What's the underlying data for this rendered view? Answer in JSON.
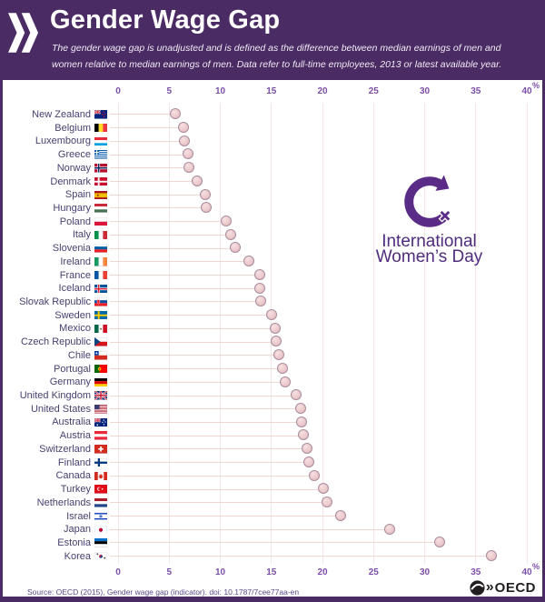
{
  "header": {
    "title": "Gender Wage Gap",
    "subtitle_line1": "The gender wage gap is unadjusted and is defined as the difference between median earnings of men and",
    "subtitle_line2": "women relative to median earnings of men. Data refer to full-time employees, 2013 or latest available year."
  },
  "watermark": {
    "line1": "International",
    "line2": "Women’s Day"
  },
  "footer": {
    "source": "Source: OECD (2015), Gender wage gap (indicator). doi: 10.1787/7cee77aa-en",
    "oecd_logo_text": "OECD"
  },
  "colors": {
    "header_bg": "#4a2b63",
    "accent_purple": "#5b2c87",
    "tick_label": "#7d4ea8",
    "country_label": "#474170",
    "dot_fill": "#e9c2c6",
    "dot_border": "#a98c9e",
    "stem": "#f1d6d4",
    "gridline": "#f3e6e6"
  },
  "chart_data": {
    "type": "scatter",
    "title": "Gender Wage Gap",
    "xlabel": "%",
    "unit": "%",
    "xlim": [
      0,
      40
    ],
    "xticks": [
      0,
      5,
      10,
      15,
      20,
      25,
      30,
      35,
      40
    ],
    "grid": true,
    "legend": "none",
    "countries": [
      {
        "name": "New Zealand",
        "flag": "nz",
        "value": 5.6
      },
      {
        "name": "Belgium",
        "flag": "be",
        "value": 6.4
      },
      {
        "name": "Luxembourg",
        "flag": "lu",
        "value": 6.5
      },
      {
        "name": "Greece",
        "flag": "gr",
        "value": 6.9
      },
      {
        "name": "Norway",
        "flag": "no",
        "value": 7.0
      },
      {
        "name": "Denmark",
        "flag": "dk",
        "value": 7.8
      },
      {
        "name": "Spain",
        "flag": "es",
        "value": 8.6
      },
      {
        "name": "Hungary",
        "flag": "hu",
        "value": 8.7
      },
      {
        "name": "Poland",
        "flag": "pl",
        "value": 10.6
      },
      {
        "name": "Italy",
        "flag": "it",
        "value": 11.1
      },
      {
        "name": "Slovenia",
        "flag": "si",
        "value": 11.5
      },
      {
        "name": "Ireland",
        "flag": "ie",
        "value": 12.8
      },
      {
        "name": "France",
        "flag": "fr",
        "value": 13.9
      },
      {
        "name": "Iceland",
        "flag": "is",
        "value": 13.9
      },
      {
        "name": "Slovak Republic",
        "flag": "sk",
        "value": 14.0
      },
      {
        "name": "Sweden",
        "flag": "se",
        "value": 15.1
      },
      {
        "name": "Mexico",
        "flag": "mx",
        "value": 15.4
      },
      {
        "name": "Czech Republic",
        "flag": "cz",
        "value": 15.5
      },
      {
        "name": "Chile",
        "flag": "cl",
        "value": 15.8
      },
      {
        "name": "Portugal",
        "flag": "pt",
        "value": 16.1
      },
      {
        "name": "Germany",
        "flag": "de",
        "value": 16.4
      },
      {
        "name": "United Kingdom",
        "flag": "gb",
        "value": 17.5
      },
      {
        "name": "United States",
        "flag": "us",
        "value": 17.9
      },
      {
        "name": "Australia",
        "flag": "au",
        "value": 18.0
      },
      {
        "name": "Austria",
        "flag": "at",
        "value": 18.2
      },
      {
        "name": "Switzerland",
        "flag": "ch",
        "value": 18.5
      },
      {
        "name": "Finland",
        "flag": "fi",
        "value": 18.7
      },
      {
        "name": "Canada",
        "flag": "ca",
        "value": 19.2
      },
      {
        "name": "Turkey",
        "flag": "tr",
        "value": 20.1
      },
      {
        "name": "Netherlands",
        "flag": "nl",
        "value": 20.5
      },
      {
        "name": "Israel",
        "flag": "il",
        "value": 21.8
      },
      {
        "name": "Japan",
        "flag": "jp",
        "value": 26.6
      },
      {
        "name": "Estonia",
        "flag": "ee",
        "value": 31.5
      },
      {
        "name": "Korea",
        "flag": "kr",
        "value": 36.6
      }
    ]
  }
}
